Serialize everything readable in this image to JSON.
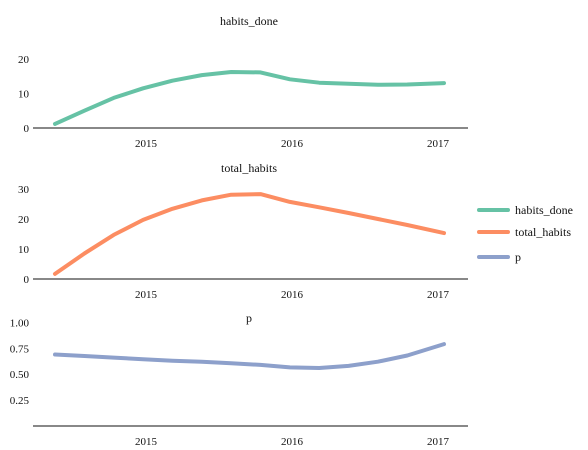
{
  "chart_data": [
    {
      "type": "line",
      "title": "habits_done",
      "color": "#66c2a5",
      "x_ticks": [
        "2015",
        "2016",
        "2017"
      ],
      "y_ticks": [
        "0",
        "10",
        "20"
      ],
      "ylim": [
        0,
        22
      ],
      "x": [
        2014.4,
        2014.6,
        2014.8,
        2015.0,
        2015.2,
        2015.4,
        2015.6,
        2015.8,
        2016.0,
        2016.2,
        2016.4,
        2016.6,
        2016.8,
        2017.05
      ],
      "values": [
        1.2,
        5.0,
        8.7,
        11.5,
        13.7,
        15.3,
        16.2,
        16.1,
        14.1,
        13.1,
        12.8,
        12.5,
        12.6,
        13.0
      ]
    },
    {
      "type": "line",
      "title": "total_habits",
      "color": "#fc8d62",
      "x_ticks": [
        "2015",
        "2016",
        "2017"
      ],
      "y_ticks": [
        "0",
        "10",
        "20",
        "30"
      ],
      "ylim": [
        0,
        33
      ],
      "x": [
        2014.4,
        2014.6,
        2014.8,
        2015.0,
        2015.2,
        2015.4,
        2015.6,
        2015.8,
        2016.0,
        2016.2,
        2016.4,
        2016.6,
        2016.8,
        2017.05
      ],
      "values": [
        1.7,
        8.5,
        14.7,
        19.7,
        23.4,
        26.2,
        28.1,
        28.3,
        25.7,
        23.9,
        22.0,
        20.0,
        18.0,
        15.3
      ]
    },
    {
      "type": "line",
      "title": "p",
      "color": "#8da0cb",
      "x_ticks": [
        "2015",
        "2016",
        "2017"
      ],
      "y_ticks": [
        "0.25",
        "0.50",
        "0.75",
        "1.00"
      ],
      "ylim": [
        0.0,
        1.1
      ],
      "x": [
        2014.4,
        2014.6,
        2014.8,
        2015.0,
        2015.2,
        2015.4,
        2015.6,
        2015.8,
        2016.0,
        2016.2,
        2016.4,
        2016.6,
        2016.8,
        2017.05
      ],
      "values": [
        0.69,
        0.675,
        0.66,
        0.645,
        0.63,
        0.62,
        0.605,
        0.59,
        0.565,
        0.56,
        0.58,
        0.62,
        0.68,
        0.79
      ]
    }
  ],
  "legend": [
    {
      "label": "habits_done",
      "color": "#66c2a5"
    },
    {
      "label": "total_habits",
      "color": "#fc8d62"
    },
    {
      "label": "p",
      "color": "#8da0cb"
    }
  ]
}
